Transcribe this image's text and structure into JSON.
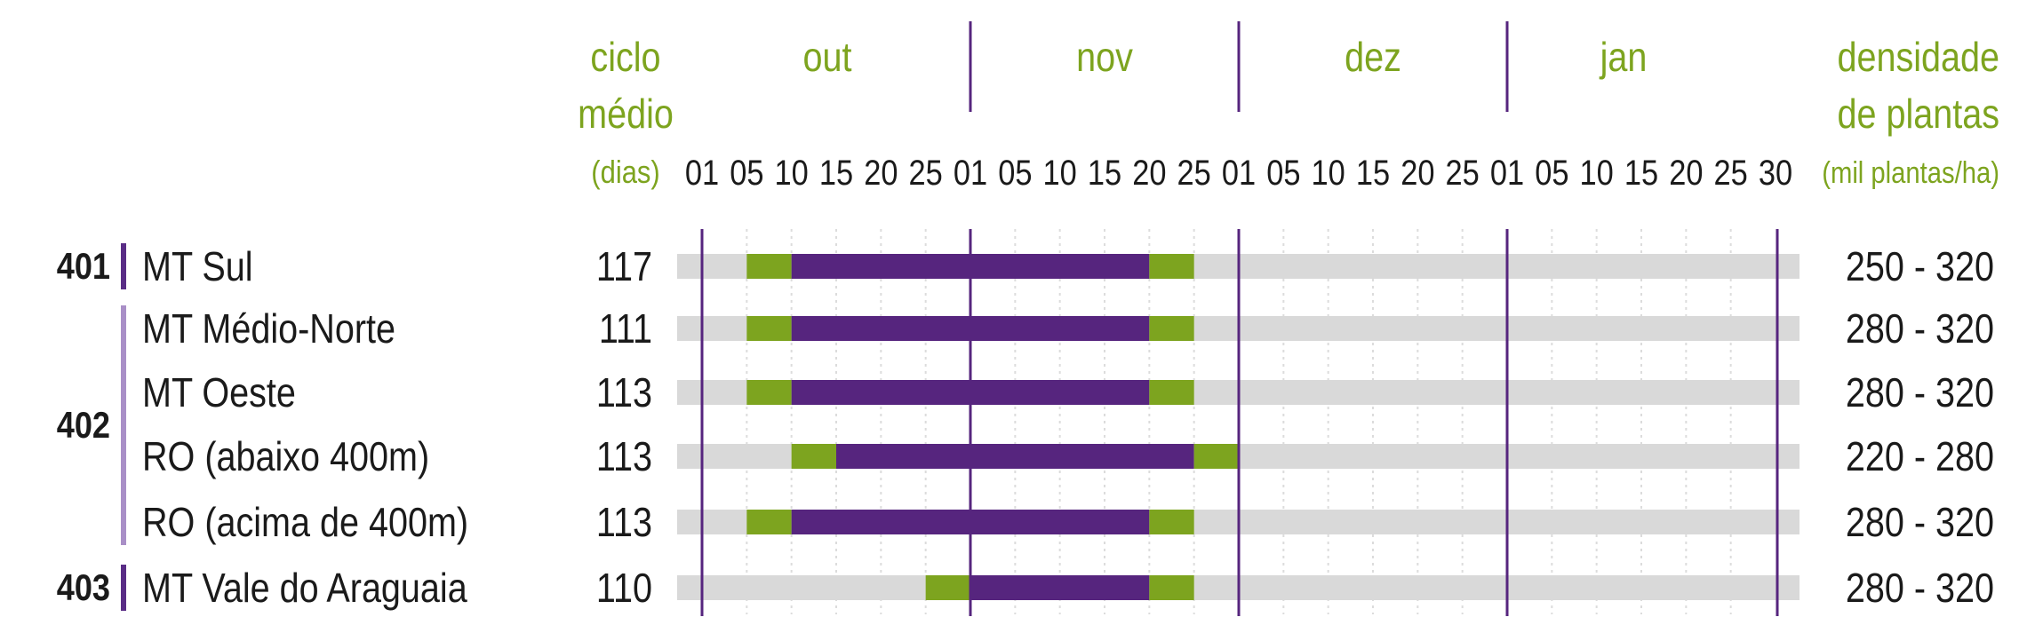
{
  "chart_data": {
    "type": "gantt",
    "headers": {
      "cycle": [
        "ciclo",
        "médio",
        "(dias)"
      ],
      "density": [
        "densidade",
        "de plantas",
        "(mil plantas/ha)"
      ]
    },
    "months": [
      {
        "name": "out",
        "ticks": [
          "01",
          "05",
          "10",
          "15",
          "20",
          "25"
        ]
      },
      {
        "name": "nov",
        "ticks": [
          "01",
          "05",
          "10",
          "15",
          "20",
          "25"
        ]
      },
      {
        "name": "dez",
        "ticks": [
          "01",
          "05",
          "10",
          "15",
          "20",
          "25"
        ]
      },
      {
        "name": "jan",
        "ticks": [
          "01",
          "05",
          "10",
          "15",
          "20",
          "25",
          "30"
        ]
      }
    ],
    "groups": [
      {
        "code": "401",
        "color": "#5a2d86",
        "rows": [
          0
        ]
      },
      {
        "code": "402",
        "color": "#a98fc7",
        "rows": [
          1,
          2,
          3,
          4
        ]
      },
      {
        "code": "403",
        "color": "#5a2d86",
        "rows": [
          5
        ]
      }
    ],
    "rows": [
      {
        "region": "MT Sul",
        "cycle": "117",
        "density": "250 - 320",
        "green_start": "out 05",
        "purple_start": "out 10",
        "purple_end": "nov 20",
        "green_end": "nov 25"
      },
      {
        "region": "MT Médio-Norte",
        "cycle": "111",
        "density": "280 - 320",
        "green_start": "out 05",
        "purple_start": "out 10",
        "purple_end": "nov 20",
        "green_end": "nov 25"
      },
      {
        "region": "MT Oeste",
        "cycle": "113",
        "density": "280 - 320",
        "green_start": "out 05",
        "purple_start": "out 10",
        "purple_end": "nov 20",
        "green_end": "nov 25"
      },
      {
        "region": "RO (abaixo 400m)",
        "cycle": "113",
        "density": "220 - 280",
        "green_start": "out 10",
        "purple_start": "out 15",
        "purple_end": "nov 25",
        "green_end": "dez 01"
      },
      {
        "region": "RO (acima de 400m)",
        "cycle": "113",
        "density": "280 - 320",
        "green_start": "out 05",
        "purple_start": "out 10",
        "purple_end": "nov 20",
        "green_end": "nov 25"
      },
      {
        "region": "MT Vale do Araguaia",
        "cycle": "110",
        "density": "280 - 320",
        "green_start": "out 25",
        "purple_start": "nov 01",
        "purple_end": "nov 20",
        "green_end": "nov 25"
      }
    ],
    "colors": {
      "green": "#7da41f",
      "purple": "#56257e",
      "track": "#d9d9d9",
      "month_divider": "#56257e",
      "grid": "#dcdcdc",
      "text": "#1a1a1a",
      "header": "#7da41f"
    }
  }
}
